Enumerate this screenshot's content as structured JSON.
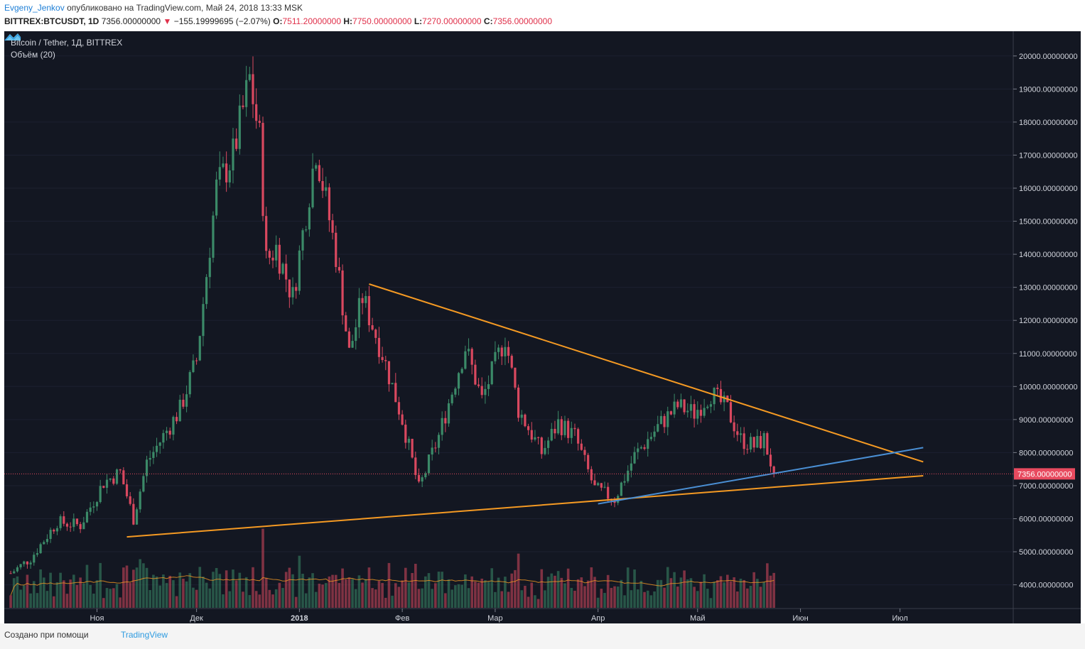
{
  "header": {
    "author": "Evgeny_Jenkov",
    "published": "опубликовано на TradingView.com, Май 24, 2018 13:33 MSK",
    "symbol": "BITTREX:BTCUSDT, 1D",
    "last": "7356.00000000",
    "change": "−155.19999695 (−2.07%)",
    "o_label": "O:",
    "o_value": "7511.20000000",
    "h_label": "H:",
    "h_value": "7750.00000000",
    "l_label": "L:",
    "l_value": "7270.00000000",
    "c_label": "C:",
    "c_value": "7356.00000000"
  },
  "legend": {
    "title": "Bitcoin / Tether, 1Д, BITTREX",
    "volume": "Объём (20)"
  },
  "footer": {
    "created_with": "Создано при помощи",
    "brand": "TradingView"
  },
  "colors": {
    "background": "#131722",
    "up": "#3b8a68",
    "down": "#d9485f",
    "trendline": "#f59a23",
    "support_blue": "#4a8fd4",
    "price_marker": "#e84a5f"
  },
  "chart_data": {
    "type": "candlestick",
    "title": "Bitcoin / Tether, 1Д, BITTREX",
    "interval": "1D",
    "y_axis": {
      "range": [
        3450,
        20500
      ],
      "ticks": [
        20000,
        19000,
        18000,
        17000,
        16000,
        15000,
        14000,
        13000,
        12000,
        11000,
        10000,
        9000,
        8000,
        7000,
        6000,
        5000,
        4000
      ],
      "tick_labels": [
        "20000.00000000",
        "19000.00000000",
        "18000.00000000",
        "17000.00000000",
        "16000.00000000",
        "15000.00000000",
        "14000.00000000",
        "13000.00000000",
        "12000.00000000",
        "11000.00000000",
        "10000.00000000",
        "9000.00000000",
        "8000.00000000",
        "7000.00000000",
        "6000.00000000",
        "5000.00000000",
        "4000.00000000"
      ]
    },
    "x_axis": {
      "labels": [
        "Ноя",
        "Дек",
        "2018",
        "Фев",
        "Мар",
        "Апр",
        "Май",
        "Июн",
        "Июл"
      ],
      "label_dates": [
        "2017-11-01",
        "2017-12-01",
        "2018-01-01",
        "2018-02-01",
        "2018-03-01",
        "2018-04-01",
        "2018-05-01",
        "2018-06-01",
        "2018-07-01"
      ]
    },
    "current_price": 7356,
    "current_price_label": "7356.00000000",
    "price_path": [
      [
        "2017-10-06",
        4350
      ],
      [
        "2017-10-12",
        4800
      ],
      [
        "2017-10-20",
        5900
      ],
      [
        "2017-10-27",
        5800
      ],
      [
        "2017-11-03",
        7100
      ],
      [
        "2017-11-08",
        7400
      ],
      [
        "2017-11-12",
        6000
      ],
      [
        "2017-11-16",
        7700
      ],
      [
        "2017-11-26",
        9300
      ],
      [
        "2017-12-01",
        10800
      ],
      [
        "2017-12-07",
        16000
      ],
      [
        "2017-12-12",
        17000
      ],
      [
        "2017-12-17",
        19300
      ],
      [
        "2017-12-20",
        17500
      ],
      [
        "2017-12-22",
        13800
      ],
      [
        "2017-12-25",
        14200
      ],
      [
        "2017-12-30",
        12700
      ],
      [
        "2018-01-06",
        17200
      ],
      [
        "2018-01-12",
        14000
      ],
      [
        "2018-01-16",
        11000
      ],
      [
        "2018-01-20",
        12700
      ],
      [
        "2018-01-26",
        11000
      ],
      [
        "2018-02-01",
        9000
      ],
      [
        "2018-02-06",
        6900
      ],
      [
        "2018-02-12",
        8500
      ],
      [
        "2018-02-20",
        11200
      ],
      [
        "2018-02-25",
        9600
      ],
      [
        "2018-03-04",
        11500
      ],
      [
        "2018-03-08",
        9300
      ],
      [
        "2018-03-15",
        8000
      ],
      [
        "2018-03-20",
        8900
      ],
      [
        "2018-03-25",
        8500
      ],
      [
        "2018-03-31",
        6900
      ],
      [
        "2018-04-06",
        6600
      ],
      [
        "2018-04-12",
        7900
      ],
      [
        "2018-04-20",
        8900
      ],
      [
        "2018-04-25",
        9400
      ],
      [
        "2018-04-30",
        9200
      ],
      [
        "2018-05-05",
        9800
      ],
      [
        "2018-05-10",
        9300
      ],
      [
        "2018-05-14",
        8400
      ],
      [
        "2018-05-18",
        8200
      ],
      [
        "2018-05-21",
        8400
      ],
      [
        "2018-05-24",
        7356
      ]
    ],
    "trendlines": [
      {
        "color": "orange",
        "from": [
          "2018-01-22",
          13100
        ],
        "to": [
          "2018-07-08",
          7720
        ]
      },
      {
        "color": "orange",
        "from": [
          "2017-11-10",
          5450
        ],
        "to": [
          "2018-07-08",
          7300
        ]
      },
      {
        "color": "blue",
        "from": [
          "2018-04-01",
          6450
        ],
        "to": [
          "2018-07-08",
          8150
        ]
      }
    ],
    "volume_indicator": {
      "name": "Объём (20)",
      "ma_period": 20
    }
  }
}
